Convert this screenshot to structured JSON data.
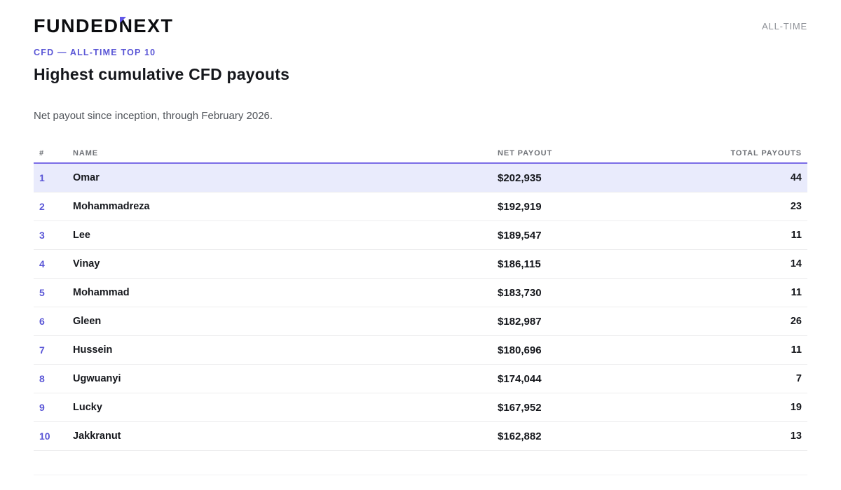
{
  "header": {
    "logo_part1": "FUNDED",
    "logo_accent_letter": "N",
    "logo_part2": "EXT",
    "period_label": "ALL-TIME",
    "eyebrow": "CFD — ALL-TIME TOP 10",
    "title": "Highest cumulative CFD payouts",
    "subtitle": "Net payout since inception, through February 2026."
  },
  "table": {
    "columns": {
      "rank": "#",
      "name": "NAME",
      "net_payout": "NET PAYOUT",
      "total_payouts": "TOTAL PAYOUTS"
    },
    "rows": [
      {
        "rank": "1",
        "name": "Omar",
        "net_payout": "$202,935",
        "total_payouts": "44",
        "highlighted": true
      },
      {
        "rank": "2",
        "name": "Mohammadreza",
        "net_payout": "$192,919",
        "total_payouts": "23",
        "highlighted": false
      },
      {
        "rank": "3",
        "name": "Lee",
        "net_payout": "$189,547",
        "total_payouts": "11",
        "highlighted": false
      },
      {
        "rank": "4",
        "name": "Vinay",
        "net_payout": "$186,115",
        "total_payouts": "14",
        "highlighted": false
      },
      {
        "rank": "5",
        "name": "Mohammad",
        "net_payout": "$183,730",
        "total_payouts": "11",
        "highlighted": false
      },
      {
        "rank": "6",
        "name": "Gleen",
        "net_payout": "$182,987",
        "total_payouts": "26",
        "highlighted": false
      },
      {
        "rank": "7",
        "name": "Hussein",
        "net_payout": "$180,696",
        "total_payouts": "11",
        "highlighted": false
      },
      {
        "rank": "8",
        "name": "Ugwuanyi",
        "net_payout": "$174,044",
        "total_payouts": "7",
        "highlighted": false
      },
      {
        "rank": "9",
        "name": "Lucky",
        "net_payout": "$167,952",
        "total_payouts": "19",
        "highlighted": false
      },
      {
        "rank": "10",
        "name": "Jakkranut",
        "net_payout": "$162,882",
        "total_payouts": "13",
        "highlighted": false
      }
    ]
  },
  "colors": {
    "accent_text": "#5a56d6",
    "accent_border": "#7a6ce6",
    "highlight_row_bg": "#e9ebfc",
    "logo_accent": "#6258e8",
    "header_text_gray": "#6f7277"
  },
  "chart_data": {
    "type": "table",
    "title": "Highest cumulative CFD payouts",
    "subtitle": "Net payout since inception, through February 2026.",
    "columns": [
      "#",
      "NAME",
      "NET PAYOUT",
      "TOTAL PAYOUTS"
    ],
    "rows": [
      [
        1,
        "Omar",
        202935,
        44
      ],
      [
        2,
        "Mohammadreza",
        192919,
        23
      ],
      [
        3,
        "Lee",
        189547,
        11
      ],
      [
        4,
        "Vinay",
        186115,
        14
      ],
      [
        5,
        "Mohammad",
        183730,
        11
      ],
      [
        6,
        "Gleen",
        182987,
        26
      ],
      [
        7,
        "Hussein",
        180696,
        11
      ],
      [
        8,
        "Ugwuanyi",
        174044,
        7
      ],
      [
        9,
        "Lucky",
        167952,
        19
      ],
      [
        10,
        "Jakkranut",
        162882,
        13
      ]
    ],
    "notes": "Row 1 (Omar) is highlighted; rank column rendered in purple accent color."
  }
}
